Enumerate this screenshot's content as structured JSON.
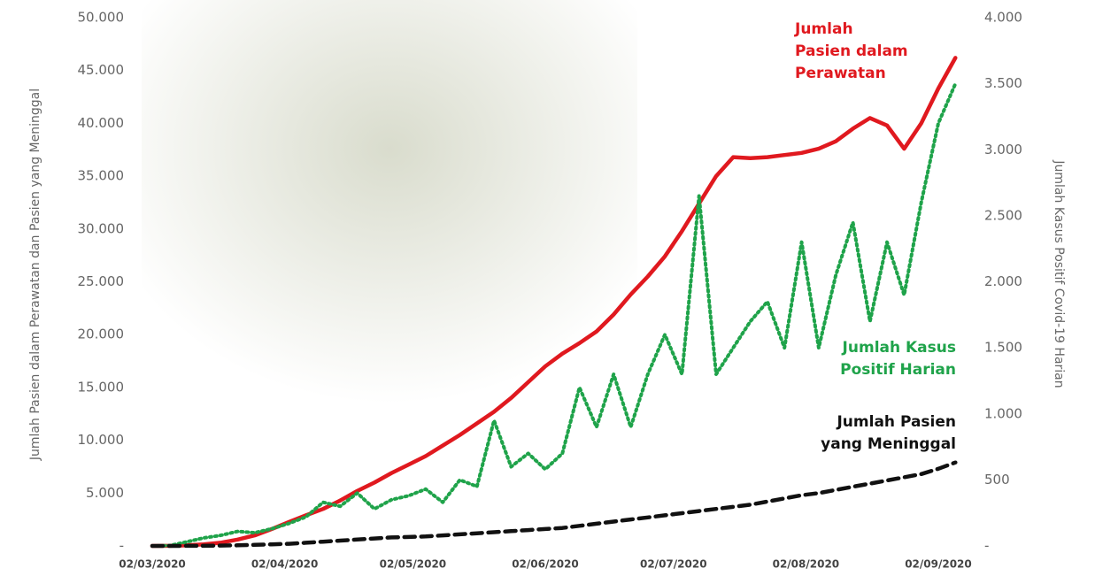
{
  "chart_data": {
    "type": "line",
    "y_label": "Jumlah Pasien dalam Perawatan dan Pasien yang Meninggal",
    "y2_label": "Jumlah Kasus Positif Covid-19 Harian",
    "x": [
      "02/03/2020",
      "06/03/2020",
      "10/03/2020",
      "14/03/2020",
      "18/03/2020",
      "22/03/2020",
      "26/03/2020",
      "30/03/2020",
      "03/04/2020",
      "07/04/2020",
      "11/04/2020",
      "15/04/2020",
      "19/04/2020",
      "23/04/2020",
      "27/04/2020",
      "01/05/2020",
      "05/05/2020",
      "09/05/2020",
      "13/05/2020",
      "17/05/2020",
      "21/05/2020",
      "25/05/2020",
      "29/05/2020",
      "02/06/2020",
      "06/06/2020",
      "10/06/2020",
      "14/06/2020",
      "18/06/2020",
      "22/06/2020",
      "26/06/2020",
      "30/06/2020",
      "04/07/2020",
      "08/07/2020",
      "12/07/2020",
      "16/07/2020",
      "20/07/2020",
      "24/07/2020",
      "28/07/2020",
      "01/08/2020",
      "05/08/2020",
      "09/08/2020",
      "13/08/2020",
      "17/08/2020",
      "21/08/2020",
      "25/08/2020",
      "29/08/2020",
      "02/09/2020",
      "06/09/2020"
    ],
    "xlim": [
      "02/03/2020",
      "06/09/2020"
    ],
    "xticks": [
      "02/03/2020",
      "02/04/2020",
      "02/05/2020",
      "02/06/2020",
      "02/07/2020",
      "02/08/2020",
      "02/09/2020"
    ],
    "ylim": [
      0,
      50000
    ],
    "yticks": [
      {
        "value": 0,
        "label": "-"
      },
      {
        "value": 5000,
        "label": "5.000"
      },
      {
        "value": 10000,
        "label": "10.000"
      },
      {
        "value": 15000,
        "label": "15.000"
      },
      {
        "value": 20000,
        "label": "20.000"
      },
      {
        "value": 25000,
        "label": "25.000"
      },
      {
        "value": 30000,
        "label": "30.000"
      },
      {
        "value": 35000,
        "label": "35.000"
      },
      {
        "value": 40000,
        "label": "40.000"
      },
      {
        "value": 45000,
        "label": "45.000"
      },
      {
        "value": 50000,
        "label": "50.000"
      }
    ],
    "y2lim": [
      0,
      4000
    ],
    "y2ticks": [
      {
        "value": 0,
        "label": "-"
      },
      500,
      {
        "value": 1000,
        "label": "1.000"
      },
      {
        "value": 1500,
        "label": "1.500"
      },
      {
        "value": 2000,
        "label": "2.000"
      },
      {
        "value": 2500,
        "label": "2.500"
      },
      {
        "value": 3000,
        "label": "3.000"
      },
      {
        "value": 3500,
        "label": "3.500"
      },
      {
        "value": 4000,
        "label": "4.000"
      }
    ],
    "series": [
      {
        "label_lines": [
          "Jumlah",
          "Pasien dalam",
          "Perawatan"
        ],
        "color": "#e0191f",
        "style": "solid",
        "values": [
          0,
          10,
          50,
          150,
          300,
          600,
          1000,
          1600,
          2260,
          2900,
          3500,
          4300,
          5200,
          6000,
          6900,
          7700,
          8500,
          9500,
          10500,
          11600,
          12700,
          14000,
          15500,
          17000,
          18200,
          19200,
          20300,
          21900,
          23800,
          25500,
          27400,
          29800,
          32400,
          35000,
          36800,
          36700,
          36800,
          37000,
          37200,
          37600,
          38300,
          39500,
          40500,
          39800,
          37600,
          40000,
          43300,
          46200
        ]
      },
      {
        "label_lines": [
          "Jumlah Kasus",
          "Positif Harian"
        ],
        "color": "#1fa34a",
        "style": "dotted",
        "axis": "y2",
        "values": [
          0,
          2,
          30,
          60,
          80,
          110,
          100,
          130,
          170,
          220,
          330,
          300,
          400,
          280,
          350,
          380,
          430,
          330,
          500,
          450,
          950,
          600,
          700,
          580,
          700,
          1200,
          900,
          1300,
          900,
          1300,
          1600,
          1300,
          2650,
          1300,
          1500,
          1700,
          1850,
          1500,
          2300,
          1500,
          2050,
          2450,
          1700,
          2300,
          1900,
          2600,
          3200,
          3500
        ]
      },
      {
        "label_lines": [
          "Jumlah Pasien",
          "yang Meninggal"
        ],
        "color": "#111111",
        "style": "dashed",
        "values": [
          0,
          0,
          5,
          10,
          30,
          60,
          100,
          150,
          200,
          300,
          400,
          500,
          600,
          700,
          800,
          850,
          900,
          1000,
          1100,
          1200,
          1300,
          1400,
          1500,
          1600,
          1700,
          1900,
          2100,
          2300,
          2500,
          2700,
          2900,
          3100,
          3300,
          3500,
          3700,
          3900,
          4200,
          4500,
          4800,
          5000,
          5300,
          5600,
          5900,
          6200,
          6500,
          6800,
          7300,
          7900
        ]
      }
    ]
  }
}
